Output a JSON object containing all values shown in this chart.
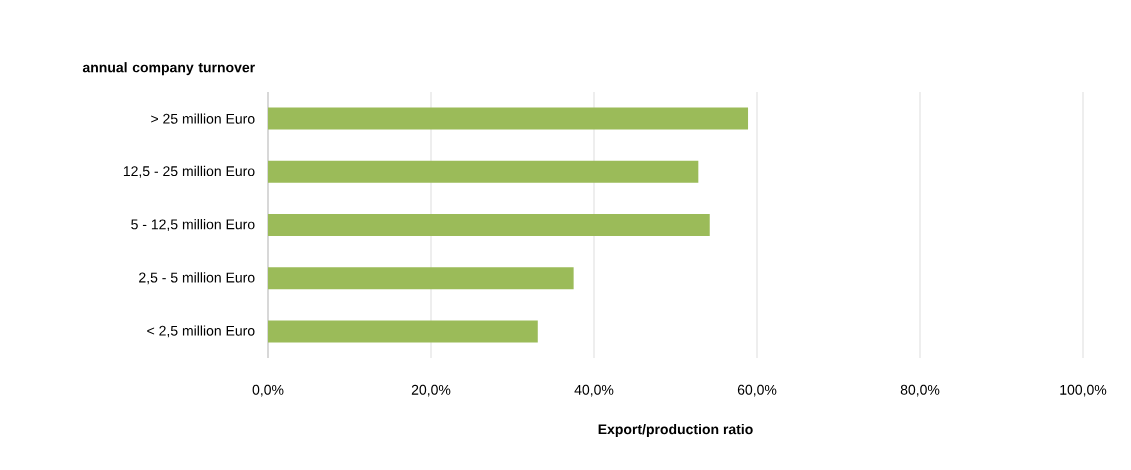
{
  "chart_data": {
    "type": "bar",
    "orientation": "horizontal",
    "ylabel": "annual company turnover",
    "xlabel": "Export/production ratio",
    "categories": [
      "> 25 million Euro",
      "12,5 - 25 million Euro",
      "5 - 12,5 million Euro",
      "2,5 - 5 million Euro",
      "< 2,5 million Euro"
    ],
    "values": [
      58.9,
      52.8,
      54.2,
      37.5,
      33.1
    ],
    "color": "#9bbb59",
    "xlim": [
      0,
      100
    ],
    "xticks": [
      {
        "value": 0,
        "label": "0,0%"
      },
      {
        "value": 20,
        "label": "20,0%"
      },
      {
        "value": 40,
        "label": "40,0%"
      },
      {
        "value": 60,
        "label": "60,0%"
      },
      {
        "value": 80,
        "label": "80,0%"
      },
      {
        "value": 100,
        "label": "100,0%"
      }
    ],
    "grid": "x"
  }
}
